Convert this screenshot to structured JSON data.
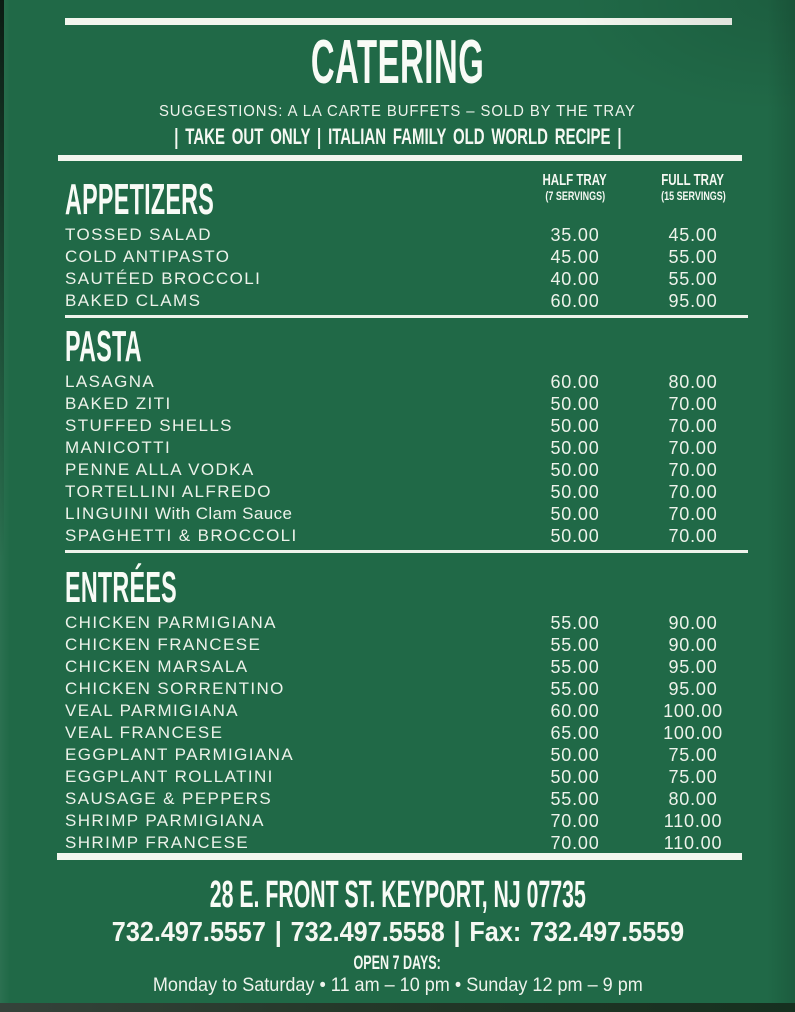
{
  "header": {
    "title": "CATERING",
    "subtitle": "SUGGESTIONS: A LA CARTE BUFFETS – SOLD BY THE TRAY",
    "tagline": "|  TAKE OUT ONLY  |  ITALIAN FAMILY OLD WORLD RECIPE  |"
  },
  "columns": {
    "half_label": "HALF TRAY",
    "half_sub": "(7 SERVINGS)",
    "full_label": "FULL TRAY",
    "full_sub": "(15 SERVINGS)"
  },
  "sections": [
    {
      "name": "APPETIZERS",
      "items": [
        {
          "name": "TOSSED SALAD",
          "half": "35.00",
          "full": "45.00"
        },
        {
          "name": "COLD ANTIPASTO",
          "half": "45.00",
          "full": "55.00"
        },
        {
          "name": "SAUTÉED BROCCOLI",
          "half": "40.00",
          "full": "55.00"
        },
        {
          "name": "BAKED CLAMS",
          "half": "60.00",
          "full": "95.00"
        }
      ]
    },
    {
      "name": "PASTA",
      "items": [
        {
          "name": "LASAGNA",
          "half": "60.00",
          "full": "80.00"
        },
        {
          "name": "BAKED ZITI",
          "half": "50.00",
          "full": "70.00"
        },
        {
          "name": "STUFFED SHELLS",
          "half": "50.00",
          "full": "70.00"
        },
        {
          "name": "MANICOTTI",
          "half": "50.00",
          "full": "70.00"
        },
        {
          "name": "PENNE ALLA VODKA",
          "half": "50.00",
          "full": "70.00"
        },
        {
          "name": "TORTELLINI ALFREDO",
          "half": "50.00",
          "full": "70.00"
        },
        {
          "name": "LINGUINI",
          "note": "With Clam Sauce",
          "half": "50.00",
          "full": "70.00"
        },
        {
          "name": "SPAGHETTI & BROCCOLI",
          "half": "50.00",
          "full": "70.00"
        }
      ]
    },
    {
      "name": "ENTRÉES",
      "items": [
        {
          "name": "CHICKEN PARMIGIANA",
          "half": "55.00",
          "full": "90.00"
        },
        {
          "name": "CHICKEN FRANCESE",
          "half": "55.00",
          "full": "90.00"
        },
        {
          "name": "CHICKEN MARSALA",
          "half": "55.00",
          "full": "95.00"
        },
        {
          "name": "CHICKEN SORRENTINO",
          "half": "55.00",
          "full": "95.00"
        },
        {
          "name": "VEAL PARMIGIANA",
          "half": "60.00",
          "full": "100.00"
        },
        {
          "name": "VEAL FRANCESE",
          "half": "65.00",
          "full": "100.00"
        },
        {
          "name": "EGGPLANT PARMIGIANA",
          "half": "50.00",
          "full": "75.00"
        },
        {
          "name": "EGGPLANT ROLLATINI",
          "half": "50.00",
          "full": "75.00"
        },
        {
          "name": "SAUSAGE & PEPPERS",
          "half": "55.00",
          "full": "80.00"
        },
        {
          "name": "SHRIMP PARMIGIANA",
          "half": "70.00",
          "full": "110.00"
        },
        {
          "name": "SHRIMP FRANCESE",
          "half": "70.00",
          "full": "110.00"
        }
      ]
    }
  ],
  "footer": {
    "address": "28 E. FRONT ST. KEYPORT, NJ 07735",
    "phones": "732.497.5557  |  732.497.5558  |  Fax: 732.497.5559",
    "open_label": "OPEN 7 DAYS:",
    "hours": "Monday to Saturday • 11 am – 10 pm • Sunday 12 pm – 9 pm"
  },
  "colors": {
    "background_green": "#206947",
    "text_off_white": "#f2f6ee"
  }
}
